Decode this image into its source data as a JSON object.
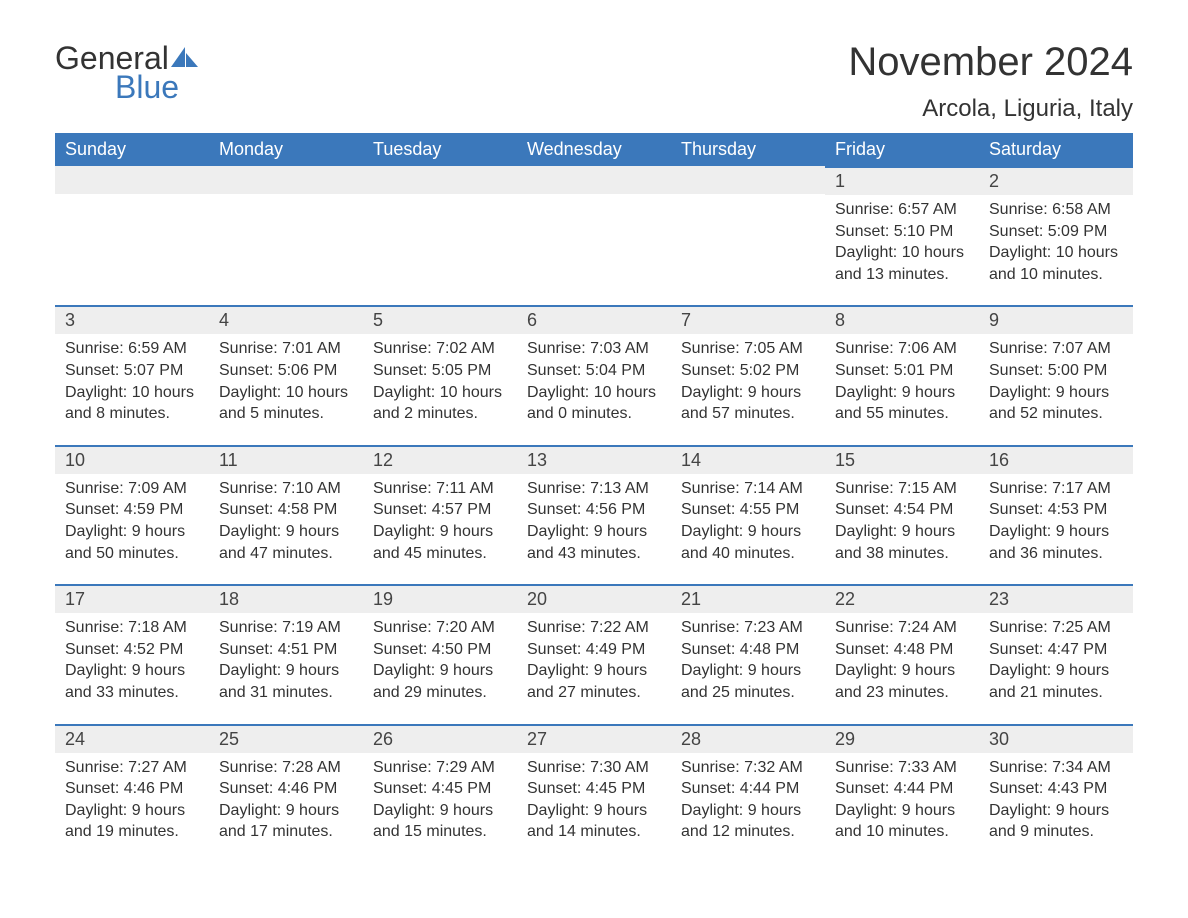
{
  "logo": {
    "text_general": "General",
    "text_blue": "Blue",
    "shape_color": "#3b78bb"
  },
  "title": "November 2024",
  "location": "Arcola, Liguria, Italy",
  "colors": {
    "header_bg": "#3b78bb",
    "header_text": "#ffffff",
    "date_row_bg": "#eeeeee",
    "date_row_border": "#3b78bb",
    "body_text": "#333333"
  },
  "day_names": [
    "Sunday",
    "Monday",
    "Tuesday",
    "Wednesday",
    "Thursday",
    "Friday",
    "Saturday"
  ],
  "weeks": [
    [
      {
        "date": "",
        "sunrise": "",
        "sunset": "",
        "daylight": ""
      },
      {
        "date": "",
        "sunrise": "",
        "sunset": "",
        "daylight": ""
      },
      {
        "date": "",
        "sunrise": "",
        "sunset": "",
        "daylight": ""
      },
      {
        "date": "",
        "sunrise": "",
        "sunset": "",
        "daylight": ""
      },
      {
        "date": "",
        "sunrise": "",
        "sunset": "",
        "daylight": ""
      },
      {
        "date": "1",
        "sunrise": "Sunrise: 6:57 AM",
        "sunset": "Sunset: 5:10 PM",
        "daylight": "Daylight: 10 hours and 13 minutes."
      },
      {
        "date": "2",
        "sunrise": "Sunrise: 6:58 AM",
        "sunset": "Sunset: 5:09 PM",
        "daylight": "Daylight: 10 hours and 10 minutes."
      }
    ],
    [
      {
        "date": "3",
        "sunrise": "Sunrise: 6:59 AM",
        "sunset": "Sunset: 5:07 PM",
        "daylight": "Daylight: 10 hours and 8 minutes."
      },
      {
        "date": "4",
        "sunrise": "Sunrise: 7:01 AM",
        "sunset": "Sunset: 5:06 PM",
        "daylight": "Daylight: 10 hours and 5 minutes."
      },
      {
        "date": "5",
        "sunrise": "Sunrise: 7:02 AM",
        "sunset": "Sunset: 5:05 PM",
        "daylight": "Daylight: 10 hours and 2 minutes."
      },
      {
        "date": "6",
        "sunrise": "Sunrise: 7:03 AM",
        "sunset": "Sunset: 5:04 PM",
        "daylight": "Daylight: 10 hours and 0 minutes."
      },
      {
        "date": "7",
        "sunrise": "Sunrise: 7:05 AM",
        "sunset": "Sunset: 5:02 PM",
        "daylight": "Daylight: 9 hours and 57 minutes."
      },
      {
        "date": "8",
        "sunrise": "Sunrise: 7:06 AM",
        "sunset": "Sunset: 5:01 PM",
        "daylight": "Daylight: 9 hours and 55 minutes."
      },
      {
        "date": "9",
        "sunrise": "Sunrise: 7:07 AM",
        "sunset": "Sunset: 5:00 PM",
        "daylight": "Daylight: 9 hours and 52 minutes."
      }
    ],
    [
      {
        "date": "10",
        "sunrise": "Sunrise: 7:09 AM",
        "sunset": "Sunset: 4:59 PM",
        "daylight": "Daylight: 9 hours and 50 minutes."
      },
      {
        "date": "11",
        "sunrise": "Sunrise: 7:10 AM",
        "sunset": "Sunset: 4:58 PM",
        "daylight": "Daylight: 9 hours and 47 minutes."
      },
      {
        "date": "12",
        "sunrise": "Sunrise: 7:11 AM",
        "sunset": "Sunset: 4:57 PM",
        "daylight": "Daylight: 9 hours and 45 minutes."
      },
      {
        "date": "13",
        "sunrise": "Sunrise: 7:13 AM",
        "sunset": "Sunset: 4:56 PM",
        "daylight": "Daylight: 9 hours and 43 minutes."
      },
      {
        "date": "14",
        "sunrise": "Sunrise: 7:14 AM",
        "sunset": "Sunset: 4:55 PM",
        "daylight": "Daylight: 9 hours and 40 minutes."
      },
      {
        "date": "15",
        "sunrise": "Sunrise: 7:15 AM",
        "sunset": "Sunset: 4:54 PM",
        "daylight": "Daylight: 9 hours and 38 minutes."
      },
      {
        "date": "16",
        "sunrise": "Sunrise: 7:17 AM",
        "sunset": "Sunset: 4:53 PM",
        "daylight": "Daylight: 9 hours and 36 minutes."
      }
    ],
    [
      {
        "date": "17",
        "sunrise": "Sunrise: 7:18 AM",
        "sunset": "Sunset: 4:52 PM",
        "daylight": "Daylight: 9 hours and 33 minutes."
      },
      {
        "date": "18",
        "sunrise": "Sunrise: 7:19 AM",
        "sunset": "Sunset: 4:51 PM",
        "daylight": "Daylight: 9 hours and 31 minutes."
      },
      {
        "date": "19",
        "sunrise": "Sunrise: 7:20 AM",
        "sunset": "Sunset: 4:50 PM",
        "daylight": "Daylight: 9 hours and 29 minutes."
      },
      {
        "date": "20",
        "sunrise": "Sunrise: 7:22 AM",
        "sunset": "Sunset: 4:49 PM",
        "daylight": "Daylight: 9 hours and 27 minutes."
      },
      {
        "date": "21",
        "sunrise": "Sunrise: 7:23 AM",
        "sunset": "Sunset: 4:48 PM",
        "daylight": "Daylight: 9 hours and 25 minutes."
      },
      {
        "date": "22",
        "sunrise": "Sunrise: 7:24 AM",
        "sunset": "Sunset: 4:48 PM",
        "daylight": "Daylight: 9 hours and 23 minutes."
      },
      {
        "date": "23",
        "sunrise": "Sunrise: 7:25 AM",
        "sunset": "Sunset: 4:47 PM",
        "daylight": "Daylight: 9 hours and 21 minutes."
      }
    ],
    [
      {
        "date": "24",
        "sunrise": "Sunrise: 7:27 AM",
        "sunset": "Sunset: 4:46 PM",
        "daylight": "Daylight: 9 hours and 19 minutes."
      },
      {
        "date": "25",
        "sunrise": "Sunrise: 7:28 AM",
        "sunset": "Sunset: 4:46 PM",
        "daylight": "Daylight: 9 hours and 17 minutes."
      },
      {
        "date": "26",
        "sunrise": "Sunrise: 7:29 AM",
        "sunset": "Sunset: 4:45 PM",
        "daylight": "Daylight: 9 hours and 15 minutes."
      },
      {
        "date": "27",
        "sunrise": "Sunrise: 7:30 AM",
        "sunset": "Sunset: 4:45 PM",
        "daylight": "Daylight: 9 hours and 14 minutes."
      },
      {
        "date": "28",
        "sunrise": "Sunrise: 7:32 AM",
        "sunset": "Sunset: 4:44 PM",
        "daylight": "Daylight: 9 hours and 12 minutes."
      },
      {
        "date": "29",
        "sunrise": "Sunrise: 7:33 AM",
        "sunset": "Sunset: 4:44 PM",
        "daylight": "Daylight: 9 hours and 10 minutes."
      },
      {
        "date": "30",
        "sunrise": "Sunrise: 7:34 AM",
        "sunset": "Sunset: 4:43 PM",
        "daylight": "Daylight: 9 hours and 9 minutes."
      }
    ]
  ]
}
